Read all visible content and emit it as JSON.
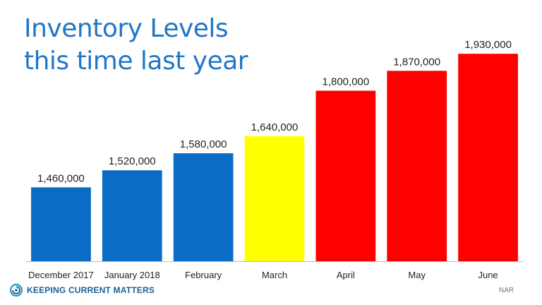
{
  "title_line1": "Inventory Levels",
  "title_line2": "this time last year",
  "chart_data": {
    "type": "bar",
    "title": "Inventory Levels this time last year",
    "categories": [
      "December 2017",
      "January 2018",
      "February",
      "March",
      "April",
      "May",
      "June"
    ],
    "values": [
      1460000,
      1520000,
      1580000,
      1640000,
      1800000,
      1870000,
      1930000
    ],
    "data_labels": [
      "1,460,000",
      "1,520,000",
      "1,580,000",
      "1,640,000",
      "1,800,000",
      "1,870,000",
      "1,930,000"
    ],
    "bar_colors": [
      "#0a6cc4",
      "#0a6cc4",
      "#0a6cc4",
      "#ffff00",
      "#ff0000",
      "#ff0000",
      "#ff0000"
    ],
    "ylim": [
      1200000,
      2000000
    ],
    "grid": false,
    "legend": "none"
  },
  "footer": {
    "logo_text": "Keeping Current Matters",
    "logo_icon": "kcm-swirl-icon",
    "source": "NAR"
  },
  "colors": {
    "title": "#1f77c8",
    "logo": "#1a5f94"
  }
}
